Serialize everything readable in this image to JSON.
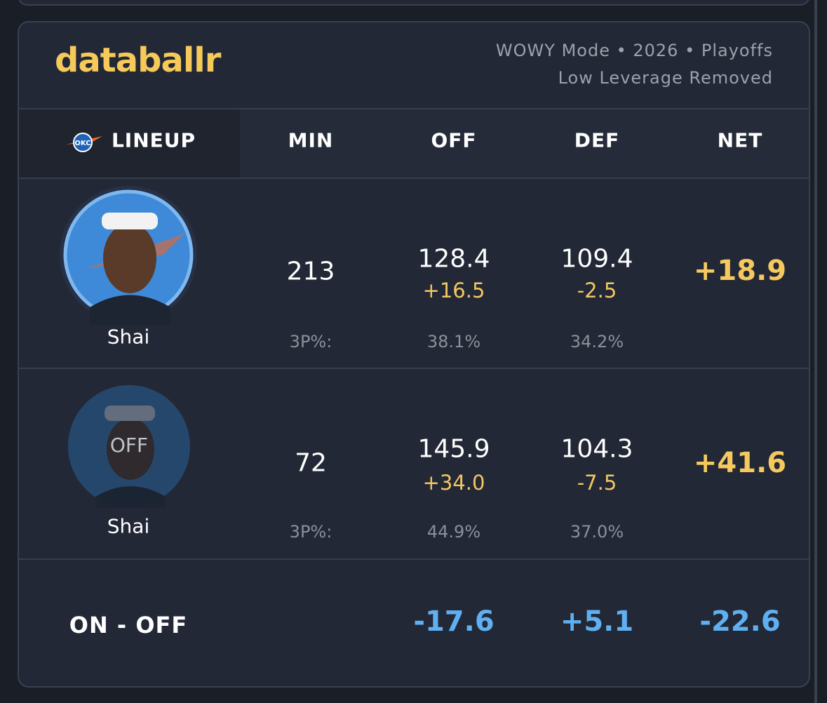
{
  "header": {
    "logo": "databallr",
    "mode_line": "WOWY Mode • 2026 • Playoffs",
    "subtitle": "Low Leverage Removed"
  },
  "table": {
    "columns": [
      "LINEUP",
      "MIN",
      "OFF",
      "DEF",
      "NET"
    ],
    "team_logo": "OKC",
    "rows": [
      {
        "player": "Shai",
        "min": "213",
        "off": "128.4",
        "off_diff": "+16.5",
        "def": "109.4",
        "def_diff": "-2.5",
        "net": "+18.9",
        "threept_label": "3P%:",
        "off_3p": "38.1%",
        "def_3p": "34.2%"
      },
      {
        "player": "Shai",
        "status": "OFF",
        "min": "72",
        "off": "145.9",
        "off_diff": "+34.0",
        "def": "104.3",
        "def_diff": "-7.5",
        "net": "+41.6",
        "threept_label": "3P%:",
        "off_3p": "44.9%",
        "def_3p": "37.0%"
      }
    ],
    "on_off": {
      "label": "ON - OFF",
      "off": "-17.6",
      "def": "+5.1",
      "net": "-22.6"
    }
  }
}
